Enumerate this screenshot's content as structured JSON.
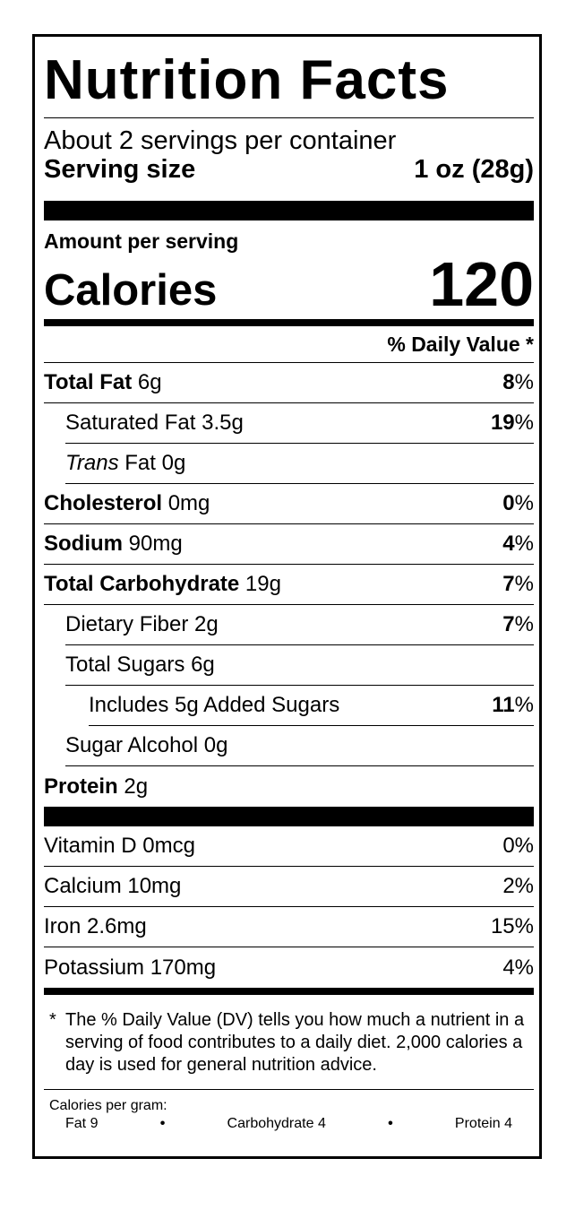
{
  "title": "Nutrition Facts",
  "servings_per_container": "About 2 servings per container",
  "serving_size": {
    "label": "Serving size",
    "value": "1 oz (28g)"
  },
  "amount_per_serving": "Amount per serving",
  "calories": {
    "label": "Calories",
    "value": "120"
  },
  "daily_value_header": "% Daily Value *",
  "nutrients": [
    {
      "name": "Total Fat",
      "amount": "6g",
      "dv": "8",
      "pct": "%"
    },
    {
      "name": "Saturated Fat",
      "amount": "3.5g",
      "dv": "19",
      "pct": "%"
    },
    {
      "prefix": "Trans",
      "name": "Fat",
      "amount": "0g"
    },
    {
      "name": "Cholesterol",
      "amount": "0mg",
      "dv": "0",
      "pct": "%"
    },
    {
      "name": "Sodium",
      "amount": "90mg",
      "dv": "4",
      "pct": "%"
    },
    {
      "name": "Total Carbohydrate",
      "amount": "19g",
      "dv": "7",
      "pct": "%"
    },
    {
      "name": "Dietary Fiber",
      "amount": "2g",
      "dv": "7",
      "pct": "%"
    },
    {
      "name": "Total Sugars",
      "amount": "6g"
    },
    {
      "name": "Includes 5g Added Sugars",
      "dv": "11",
      "pct": "%"
    },
    {
      "name": "Sugar Alcohol",
      "amount": "0g"
    },
    {
      "name": "Protein",
      "amount": "2g"
    }
  ],
  "vitamins": [
    {
      "name": "Vitamin D 0mcg",
      "dv": "0%"
    },
    {
      "name": "Calcium 10mg",
      "dv": "2%"
    },
    {
      "name": "Iron 2.6mg",
      "dv": "15%"
    },
    {
      "name": "Potassium 170mg",
      "dv": "4%"
    }
  ],
  "footnote": {
    "marker": "*",
    "text": "The % Daily Value (DV) tells you how much a nutrient in a serving of food contributes to a daily diet. 2,000 calories a day is used for general nutrition advice."
  },
  "calories_per_gram": {
    "label": "Calories per gram:",
    "bullet": "•",
    "fat": "Fat 9",
    "carbohydrate": "Carbohydrate 4",
    "protein": "Protein 4"
  }
}
